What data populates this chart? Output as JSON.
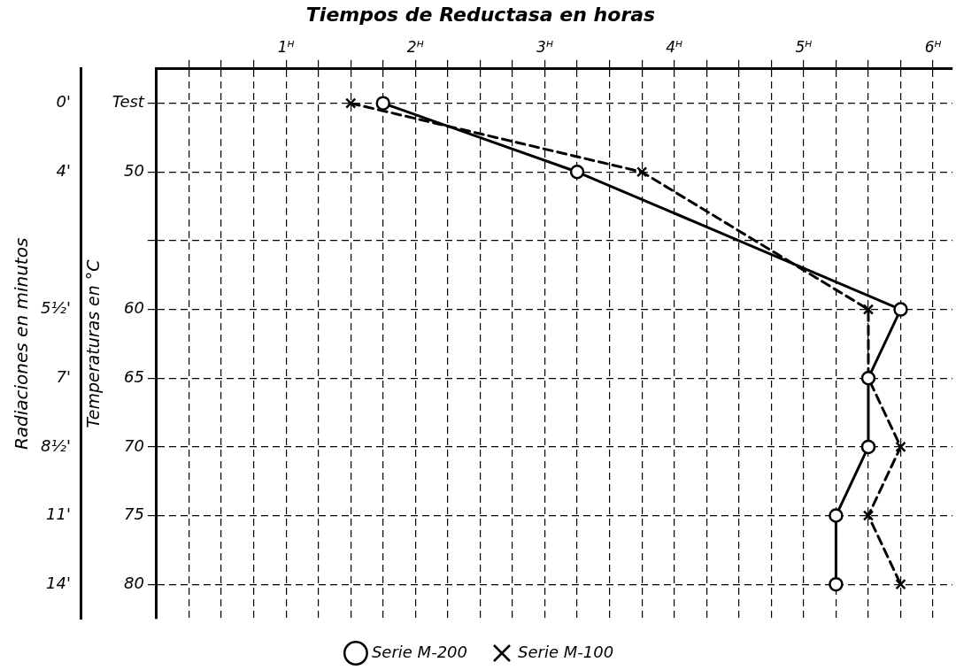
{
  "chart_data": {
    "type": "line",
    "title": "Tiempos de Reductasa en horas",
    "xlabel": null,
    "ylabel": "Temperaturas en °C",
    "y2label": "Radiaciones en minutos",
    "categories": [
      "Test",
      "50",
      null,
      "60",
      "65",
      "70",
      "75",
      "80"
    ],
    "y2_categories": [
      "0'",
      "4'",
      null,
      "5½'",
      "7'",
      "8½'",
      "11'",
      "14'"
    ],
    "xlim": [
      0,
      6.15
    ],
    "xticks": [
      {
        "value": 0.25,
        "label": null
      },
      {
        "value": 0.5,
        "label": null
      },
      {
        "value": 0.75,
        "label": null
      },
      {
        "value": 1,
        "label": "1ᴴ"
      },
      {
        "value": 1.25,
        "label": null
      },
      {
        "value": 1.5,
        "label": null
      },
      {
        "value": 1.75,
        "label": null
      },
      {
        "value": 2,
        "label": "2ᴴ"
      },
      {
        "value": 2.25,
        "label": null
      },
      {
        "value": 2.5,
        "label": null
      },
      {
        "value": 2.75,
        "label": null
      },
      {
        "value": 3,
        "label": "3ᴴ"
      },
      {
        "value": 3.25,
        "label": null
      },
      {
        "value": 3.5,
        "label": null
      },
      {
        "value": 3.75,
        "label": null
      },
      {
        "value": 4,
        "label": "4ᴴ"
      },
      {
        "value": 4.25,
        "label": null
      },
      {
        "value": 4.5,
        "label": null
      },
      {
        "value": 4.75,
        "label": null
      },
      {
        "value": 5,
        "label": "5ᴴ"
      },
      {
        "value": 5.25,
        "label": null
      },
      {
        "value": 5.5,
        "label": null
      },
      {
        "value": 5.75,
        "label": null
      },
      {
        "value": 6,
        "label": "6ᴴ"
      }
    ],
    "series": [
      {
        "name": "Serie M-200",
        "color": "#000000",
        "marker": "circle",
        "line_style": "solid",
        "values": [
          1.75,
          3.25,
          null,
          5.75,
          5.5,
          5.5,
          5.25,
          5.25
        ]
      },
      {
        "name": "Serie M-100",
        "color": "#000000",
        "marker": "cross",
        "line_style": "dashed",
        "values": [
          1.5,
          3.75,
          null,
          5.5,
          5.5,
          5.75,
          5.5,
          5.75
        ]
      }
    ],
    "orientation": "horizontal",
    "grid": true,
    "legend": "bottom"
  }
}
